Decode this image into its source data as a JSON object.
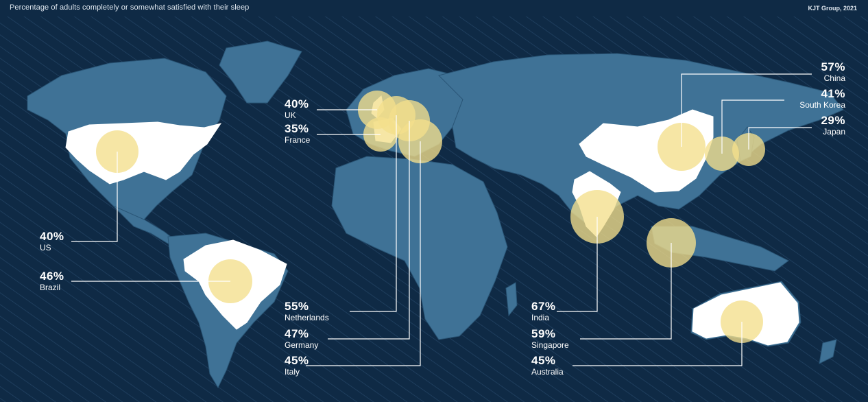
{
  "header": {
    "title": "Percentage of adults completely or somewhat satisfied with their sleep",
    "source": "KJT Group, 2021"
  },
  "colors": {
    "background": "#0f2a45",
    "land": "#3f7296",
    "highlight_land": "#ffffff",
    "bubble": "#f3df8c",
    "leader_line": "#ffffff"
  },
  "countries": [
    {
      "key": "us",
      "name": "US",
      "value": "40%"
    },
    {
      "key": "brazil",
      "name": "Brazil",
      "value": "46%"
    },
    {
      "key": "uk",
      "name": "UK",
      "value": "40%"
    },
    {
      "key": "france",
      "name": "France",
      "value": "35%"
    },
    {
      "key": "netherlands",
      "name": "Netherlands",
      "value": "55%"
    },
    {
      "key": "germany",
      "name": "Germany",
      "value": "47%"
    },
    {
      "key": "italy",
      "name": "Italy",
      "value": "45%"
    },
    {
      "key": "china",
      "name": "China",
      "value": "57%"
    },
    {
      "key": "south_korea",
      "name": "South Korea",
      "value": "41%"
    },
    {
      "key": "japan",
      "name": "Japan",
      "value": "29%"
    },
    {
      "key": "india",
      "name": "India",
      "value": "67%"
    },
    {
      "key": "singapore",
      "name": "Singapore",
      "value": "59%"
    },
    {
      "key": "australia",
      "name": "Australia",
      "value": "45%"
    }
  ]
}
